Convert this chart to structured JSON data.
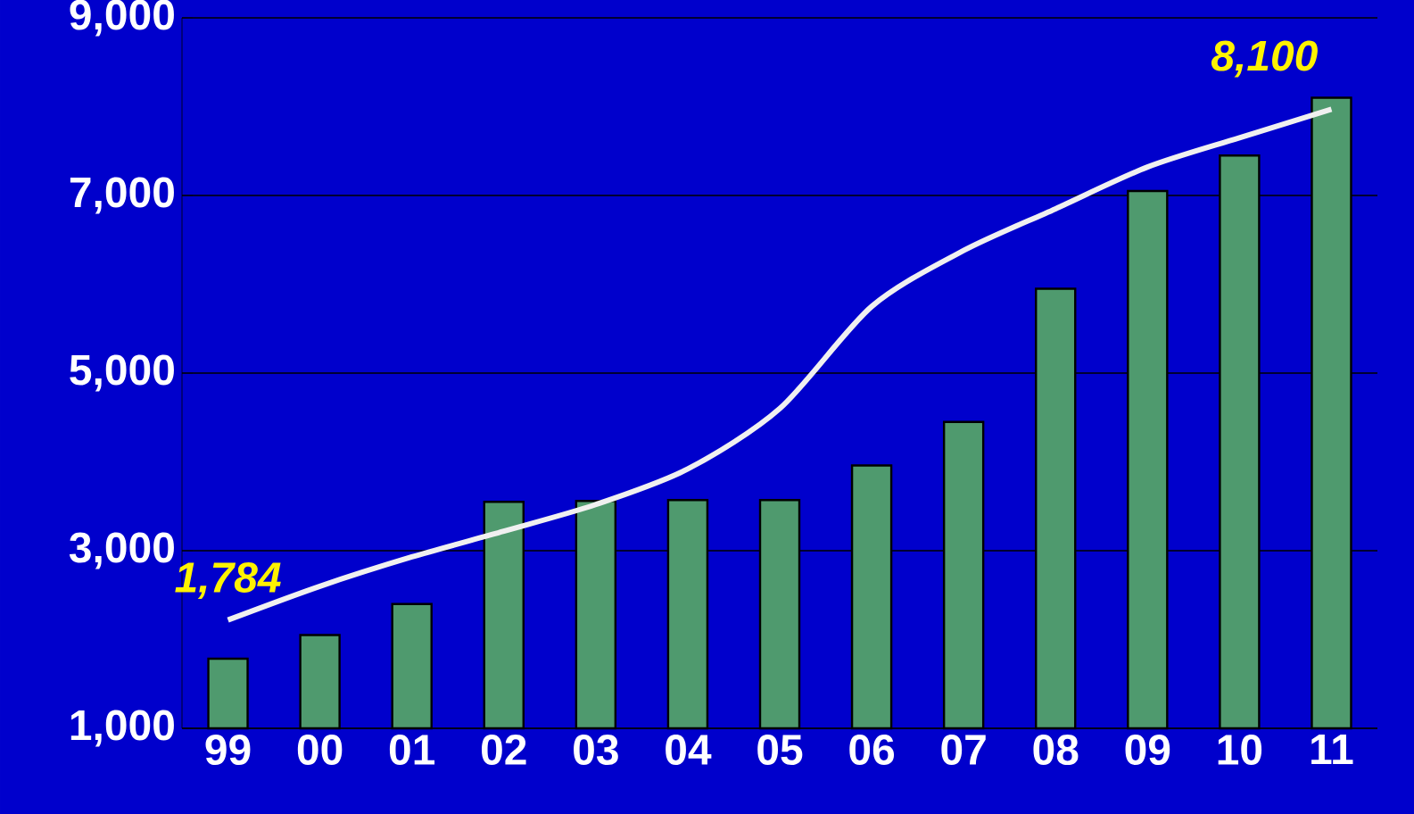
{
  "chart_data": {
    "type": "bar",
    "categories": [
      "99",
      "00",
      "01",
      "02",
      "03",
      "04",
      "05",
      "06",
      "07",
      "08",
      "09",
      "10",
      "11"
    ],
    "series": [
      {
        "color": "#4f9a6e",
        "values": [
          1784,
          2050,
          2400,
          3550,
          3560,
          3570,
          3570,
          3960,
          4450,
          5950,
          7050,
          7450,
          8100
        ]
      },
      {
        "type": "line",
        "color": "#f0f0f0",
        "values": [
          2220,
          2600,
          2930,
          3220,
          3520,
          3920,
          4600,
          5750,
          6380,
          6850,
          7320,
          7650,
          7970
        ]
      }
    ],
    "ylim": [
      1000,
      9000
    ],
    "yticks": [
      {
        "value": 1000,
        "label": "1,000"
      },
      {
        "value": 3000,
        "label": "3,000"
      },
      {
        "value": 5000,
        "label": "5,000"
      },
      {
        "value": 7000,
        "label": "7,000"
      },
      {
        "value": 9000,
        "label": "9,000"
      }
    ],
    "grid": "y",
    "annotations": [
      {
        "text": "1,784",
        "x": "99",
        "y": 1784
      },
      {
        "text": "8,100",
        "x": "11",
        "y": 8100
      }
    ]
  }
}
